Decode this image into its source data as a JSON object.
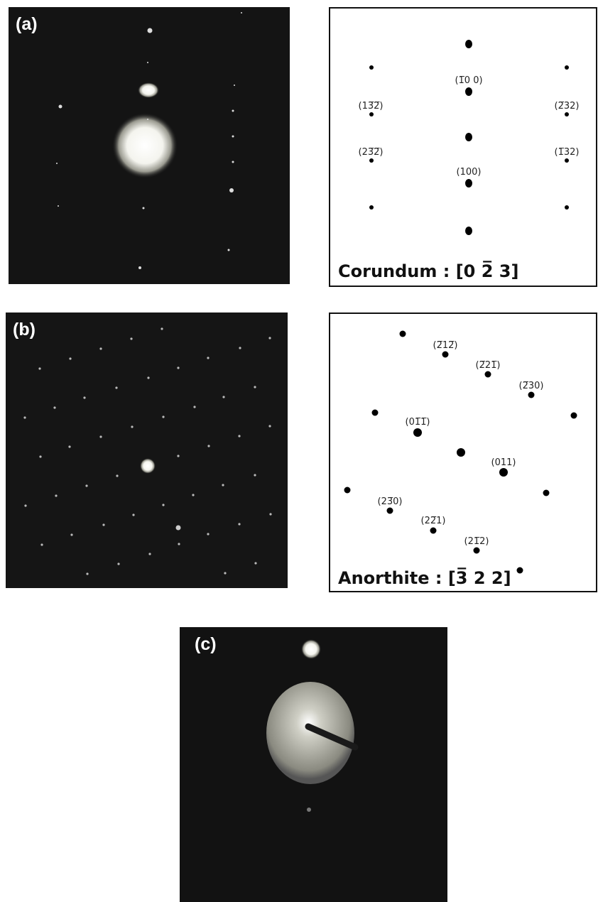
{
  "panels": [
    {
      "label": "(a)",
      "caption": "Corundum :   [0  2̅  3]",
      "indices": [
        "(1̅0 0)",
        "(100)",
        "(13̅2̅)",
        "(2̅32)",
        "(23̅2̅)",
        "(1̅32)"
      ]
    },
    {
      "label": "(b)",
      "caption": "Anorthite : [3̅ 2 2]",
      "indices": [
        "(2̅12̅)",
        "(2̅21̅)",
        "(2̅30)",
        "(01̅1̅)",
        "(011)",
        "(23̅0)",
        "(22̅1)",
        "(21̅2)"
      ]
    },
    {
      "label": "(c)"
    }
  ]
}
